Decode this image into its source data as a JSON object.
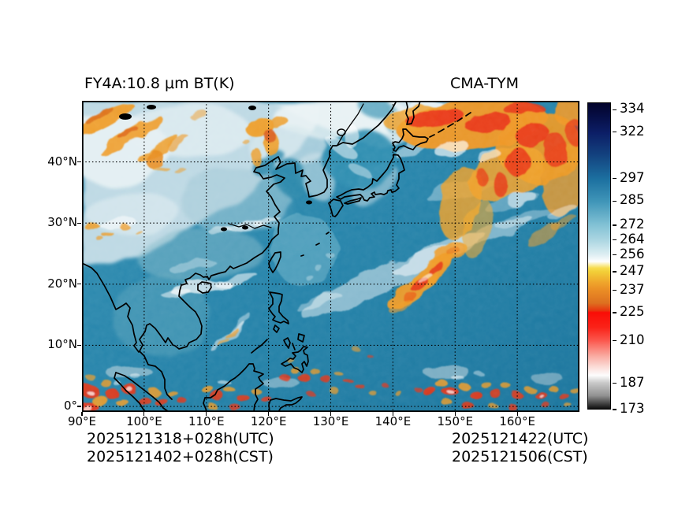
{
  "header": {
    "title_left": "FY4A:10.8 μm BT(K)",
    "title_right": "CMA-TYM"
  },
  "axes": {
    "x_ticks": [
      {
        "deg": 90,
        "label": "90°E"
      },
      {
        "deg": 100,
        "label": "100°E"
      },
      {
        "deg": 110,
        "label": "110°E"
      },
      {
        "deg": 120,
        "label": "120°E"
      },
      {
        "deg": 130,
        "label": "130°E"
      },
      {
        "deg": 140,
        "label": "140°E"
      },
      {
        "deg": 150,
        "label": "150°E"
      },
      {
        "deg": 160,
        "label": "160°E"
      }
    ],
    "y_ticks": [
      {
        "deg": 40,
        "label": "40°N"
      },
      {
        "deg": 30,
        "label": "30°N"
      },
      {
        "deg": 20,
        "label": "20°N"
      },
      {
        "deg": 10,
        "label": "10°N"
      },
      {
        "deg": 0,
        "label": "0°"
      }
    ]
  },
  "colorbar": {
    "min": 173,
    "max": 338,
    "units": "K",
    "ticks": [
      334,
      322,
      297,
      285,
      272,
      264,
      256,
      247,
      237,
      225,
      210,
      187,
      173
    ],
    "stops": [
      {
        "v": 338,
        "c": "#03032b"
      },
      {
        "v": 330,
        "c": "#071049"
      },
      {
        "v": 322,
        "c": "#0c1e66"
      },
      {
        "v": 310,
        "c": "#13427f"
      },
      {
        "v": 297,
        "c": "#1c70a0"
      },
      {
        "v": 285,
        "c": "#3f95b8"
      },
      {
        "v": 272,
        "c": "#83c2d5"
      },
      {
        "v": 264,
        "c": "#acd6e2"
      },
      {
        "v": 256,
        "c": "#dfeff3"
      },
      {
        "v": 252.5,
        "c": "#fefefe"
      },
      {
        "v": 249,
        "c": "#f7dc4e"
      },
      {
        "v": 247,
        "c": "#f2ce38"
      },
      {
        "v": 241,
        "c": "#efa42b"
      },
      {
        "v": 237,
        "c": "#ea8d25"
      },
      {
        "v": 230,
        "c": "#dd7020"
      },
      {
        "v": 226,
        "c": "#e8350f"
      },
      {
        "v": 225,
        "c": "#fa0d06"
      },
      {
        "v": 217,
        "c": "#fa2218"
      },
      {
        "v": 210,
        "c": "#fb564c"
      },
      {
        "v": 202,
        "c": "#f9a69c"
      },
      {
        "v": 196,
        "c": "#fbd9d4"
      },
      {
        "v": 191,
        "c": "#fdfdfd"
      },
      {
        "v": 187,
        "c": "#c9c9c9"
      },
      {
        "v": 180,
        "c": "#909090"
      },
      {
        "v": 173,
        "c": "#0e0e0e"
      }
    ]
  },
  "footer": {
    "init_utc": "2025121318+028h(UTC)",
    "init_cst": "2025121402+028h(CST)",
    "valid_utc": "2025121422(UTC)",
    "valid_cst": "2025121506(CST)"
  },
  "chart_data": {
    "type": "heatmap",
    "title": "FY4A:10.8 μm BT(K)",
    "model": "CMA-TYM",
    "variable": "10.8 μm brightness temperature",
    "units": "K",
    "map_extent": {
      "lon_min": 90,
      "lon_max": 170,
      "lat_min": 0,
      "lat_max": 50
    },
    "x_tick_labels": [
      "90°E",
      "100°E",
      "110°E",
      "120°E",
      "130°E",
      "140°E",
      "150°E",
      "160°E"
    ],
    "y_tick_labels": [
      "0°",
      "10°N",
      "20°N",
      "30°N",
      "40°N"
    ],
    "grid": "dotted black 10° graticule",
    "colorbar_ticks": [
      334,
      322,
      297,
      285,
      272,
      264,
      256,
      247,
      237,
      225,
      210,
      187,
      173
    ],
    "colorbar_range": [
      173,
      338
    ],
    "legend_position": "right",
    "features": [
      "Large comma-shaped cold cloud system (orange/red, BT ≈ 210–240 K) over NE Japan, Kuril Islands and NW Pacific, 140–170°E / 30–50°N",
      "Diagonal convective band with red cores from about (139°E,16°N) to (151°E,26°N)",
      "Jet-stream cirrus streaks (orange) over NW China/Mongolia 90–105°E / 41–48°N and NE China 116–123°E / 40–47°N",
      "ITCZ: scattered deep convection (red/orange cells, some with near-white overshooting tops) along 0–8°N from 90°E to 170°E, strongest over Sumatra/Malaysia, Borneo, southern Philippines and 145–160°E",
      "Pale cold winter land surfaces (≈250–260 K) over NW/NE China, Mongolia and Amur region; warm teal ocean (≈285–297 K) elsewhere",
      "Thin white cirrus bands over Hainan–northern South China Sea and across the subtropical west Pacific",
      "Black coastlines, major rivers and lakes overlaid"
    ]
  }
}
